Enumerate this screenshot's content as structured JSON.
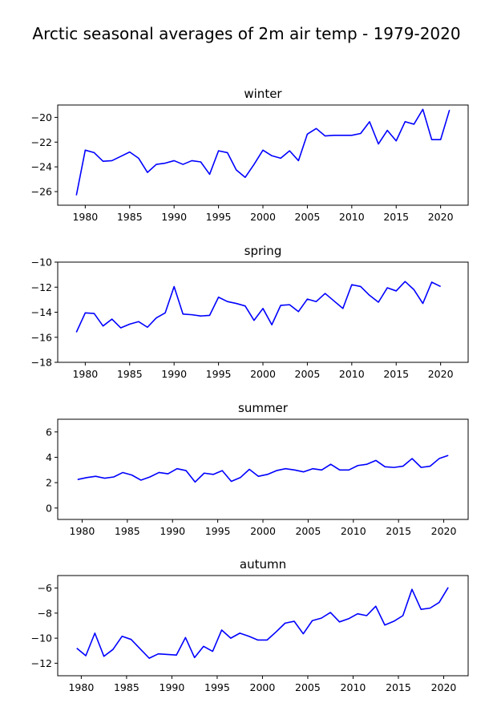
{
  "figure": {
    "title": "Arctic seasonal averages of 2m air temp - 1979-2020",
    "line_color": "#0000ff"
  },
  "chart_data": [
    {
      "type": "line",
      "title": "winter",
      "xlabel": "",
      "ylabel": "",
      "xlim": [
        1976.9,
        2023.1
      ],
      "ylim": [
        -27.1,
        -19.0
      ],
      "xticks": [
        1980,
        1985,
        1990,
        1995,
        2000,
        2005,
        2010,
        2015,
        2020
      ],
      "yticks": [
        -26,
        -24,
        -22,
        -20
      ],
      "grid": false,
      "series": [
        {
          "color": "#0000ff",
          "x": [
            1979,
            1980,
            1981,
            1982,
            1983,
            1984,
            1985,
            1986,
            1987,
            1988,
            1989,
            1990,
            1991,
            1992,
            1993,
            1994,
            1995,
            1996,
            1997,
            1998,
            1999,
            2000,
            2001,
            2002,
            2003,
            2004,
            2005,
            2006,
            2007,
            2008,
            2009,
            2010,
            2011,
            2012,
            2013,
            2014,
            2015,
            2016,
            2017,
            2018,
            2019,
            2020,
            2021
          ],
          "y": [
            -26.3,
            -22.65,
            -22.85,
            -23.55,
            -23.5,
            -23.15,
            -22.8,
            -23.3,
            -24.45,
            -23.8,
            -23.7,
            -23.5,
            -23.8,
            -23.5,
            -23.6,
            -24.6,
            -22.7,
            -22.85,
            -24.25,
            -24.85,
            -23.8,
            -22.65,
            -23.1,
            -23.3,
            -22.7,
            -23.5,
            -21.35,
            -20.9,
            -21.5,
            -21.45,
            -21.45,
            -21.45,
            -21.3,
            -20.35,
            -22.15,
            -21.05,
            -21.9,
            -20.35,
            -20.55,
            -19.35,
            -21.8,
            -21.8,
            -19.4
          ]
        }
      ]
    },
    {
      "type": "line",
      "title": "spring",
      "xlabel": "",
      "ylabel": "",
      "xlim": [
        1976.9,
        2023.1
      ],
      "ylim": [
        -18,
        -10
      ],
      "xticks": [
        1980,
        1985,
        1990,
        1995,
        2000,
        2005,
        2010,
        2015,
        2020
      ],
      "yticks": [
        -18,
        -16,
        -14,
        -12,
        -10
      ],
      "grid": false,
      "series": [
        {
          "color": "#0000ff",
          "x": [
            1979,
            1980,
            1981,
            1982,
            1983,
            1984,
            1985,
            1986,
            1987,
            1988,
            1989,
            1990,
            1991,
            1992,
            1993,
            1994,
            1995,
            1996,
            1997,
            1998,
            1999,
            2000,
            2001,
            2002,
            2003,
            2004,
            2005,
            2006,
            2007,
            2008,
            2009,
            2010,
            2011,
            2012,
            2013,
            2014,
            2015,
            2016,
            2017,
            2018,
            2019,
            2020
          ],
          "y": [
            -15.6,
            -14.05,
            -14.1,
            -15.1,
            -14.55,
            -15.25,
            -14.95,
            -14.75,
            -15.2,
            -14.45,
            -14.05,
            -11.95,
            -14.15,
            -14.2,
            -14.3,
            -14.25,
            -12.8,
            -13.15,
            -13.3,
            -13.5,
            -14.65,
            -13.7,
            -15.0,
            -13.45,
            -13.4,
            -13.95,
            -12.95,
            -13.15,
            -12.5,
            -13.1,
            -13.7,
            -11.8,
            -11.95,
            -12.65,
            -13.2,
            -12.05,
            -12.3,
            -11.55,
            -12.2,
            -13.3,
            -11.6,
            -11.95
          ]
        }
      ]
    },
    {
      "type": "line",
      "title": "summer",
      "xlabel": "",
      "ylabel": "",
      "xlim": [
        1977.3,
        2022.7
      ],
      "ylim": [
        -0.9,
        7.0
      ],
      "xticks": [
        1980,
        1985,
        1990,
        1995,
        2000,
        2005,
        2010,
        2015,
        2020
      ],
      "yticks": [
        0,
        2,
        4,
        6
      ],
      "grid": false,
      "series": [
        {
          "color": "#0000ff",
          "x": [
            1979.5,
            1980.5,
            1981.5,
            1982.5,
            1983.5,
            1984.5,
            1985.5,
            1986.5,
            1987.5,
            1988.5,
            1989.5,
            1990.5,
            1991.5,
            1992.5,
            1993.5,
            1994.5,
            1995.5,
            1996.5,
            1997.5,
            1998.5,
            1999.5,
            2000.5,
            2001.5,
            2002.5,
            2003.5,
            2004.5,
            2005.5,
            2006.5,
            2007.5,
            2008.5,
            2009.5,
            2010.5,
            2011.5,
            2012.5,
            2013.5,
            2014.5,
            2015.5,
            2016.5,
            2017.5,
            2018.5,
            2019.5,
            2020.5
          ],
          "y": [
            2.25,
            2.4,
            2.5,
            2.35,
            2.45,
            2.8,
            2.6,
            2.2,
            2.45,
            2.8,
            2.7,
            3.1,
            2.95,
            2.05,
            2.75,
            2.65,
            2.95,
            2.1,
            2.4,
            3.05,
            2.5,
            2.65,
            2.95,
            3.1,
            3.0,
            2.85,
            3.1,
            3.0,
            3.45,
            3.0,
            3.0,
            3.35,
            3.45,
            3.75,
            3.25,
            3.2,
            3.3,
            3.9,
            3.2,
            3.3,
            3.9,
            4.15
          ]
        }
      ]
    },
    {
      "type": "line",
      "title": "autumn",
      "xlabel": "",
      "ylabel": "",
      "xlim": [
        1977.4,
        2022.7
      ],
      "ylim": [
        -13.0,
        -5.0
      ],
      "xticks": [
        1980,
        1985,
        1990,
        1995,
        2000,
        2005,
        2010,
        2015,
        2020
      ],
      "yticks": [
        -12,
        -10,
        -8,
        -6
      ],
      "grid": false,
      "series": [
        {
          "color": "#0000ff",
          "x": [
            1979.5,
            1980.5,
            1981.5,
            1982.5,
            1983.5,
            1984.5,
            1985.5,
            1986.5,
            1987.5,
            1988.5,
            1989.5,
            1990.5,
            1991.5,
            1992.5,
            1993.5,
            1994.5,
            1995.5,
            1996.5,
            1997.5,
            1998.5,
            1999.5,
            2000.5,
            2001.5,
            2002.5,
            2003.5,
            2004.5,
            2005.5,
            2006.5,
            2007.5,
            2008.5,
            2009.5,
            2010.5,
            2011.5,
            2012.5,
            2013.5,
            2014.5,
            2015.5,
            2016.5,
            2017.5,
            2018.5,
            2019.5,
            2020.5
          ],
          "y": [
            -10.8,
            -11.4,
            -9.6,
            -11.45,
            -10.9,
            -9.85,
            -10.1,
            -10.85,
            -11.6,
            -11.25,
            -11.3,
            -11.35,
            -9.95,
            -11.55,
            -10.65,
            -11.05,
            -9.35,
            -10.0,
            -9.6,
            -9.85,
            -10.15,
            -10.15,
            -9.5,
            -8.8,
            -8.65,
            -9.65,
            -8.6,
            -8.4,
            -7.95,
            -8.7,
            -8.45,
            -8.05,
            -8.2,
            -7.45,
            -8.95,
            -8.65,
            -8.2,
            -6.1,
            -7.7,
            -7.6,
            -7.15,
            -5.95
          ]
        }
      ]
    }
  ]
}
